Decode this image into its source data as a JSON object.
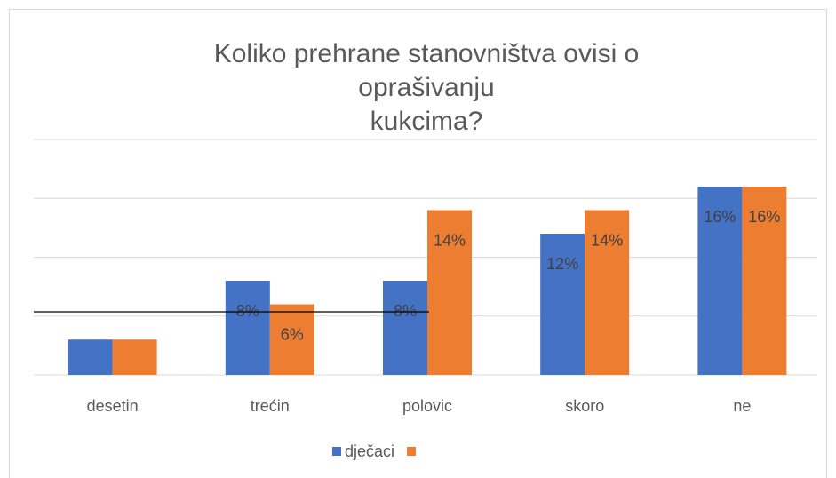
{
  "chart_data": {
    "type": "bar",
    "title": [
      "Koliko prehrane stanovništva ovisi o",
      "oprašivanju",
      "kukcima?"
    ],
    "categories": [
      "desetin",
      "trećin",
      "polovic",
      "skoro",
      "ne"
    ],
    "series": [
      {
        "name": "dječaci",
        "color": "#4472c4",
        "values": [
          3,
          8,
          8,
          12,
          16
        ],
        "value_labels": [
          null,
          "8%",
          "8%",
          "12%",
          "16%"
        ]
      },
      {
        "color": "#ed7d31",
        "values": [
          3,
          6,
          14,
          14,
          16
        ],
        "value_labels": [
          null,
          "6%",
          "14%",
          "14%",
          "16%"
        ]
      }
    ],
    "ylim": [
      0,
      20
    ],
    "yticks": [
      0,
      5,
      10,
      15,
      20
    ],
    "grid": true,
    "legend": "bottom"
  }
}
